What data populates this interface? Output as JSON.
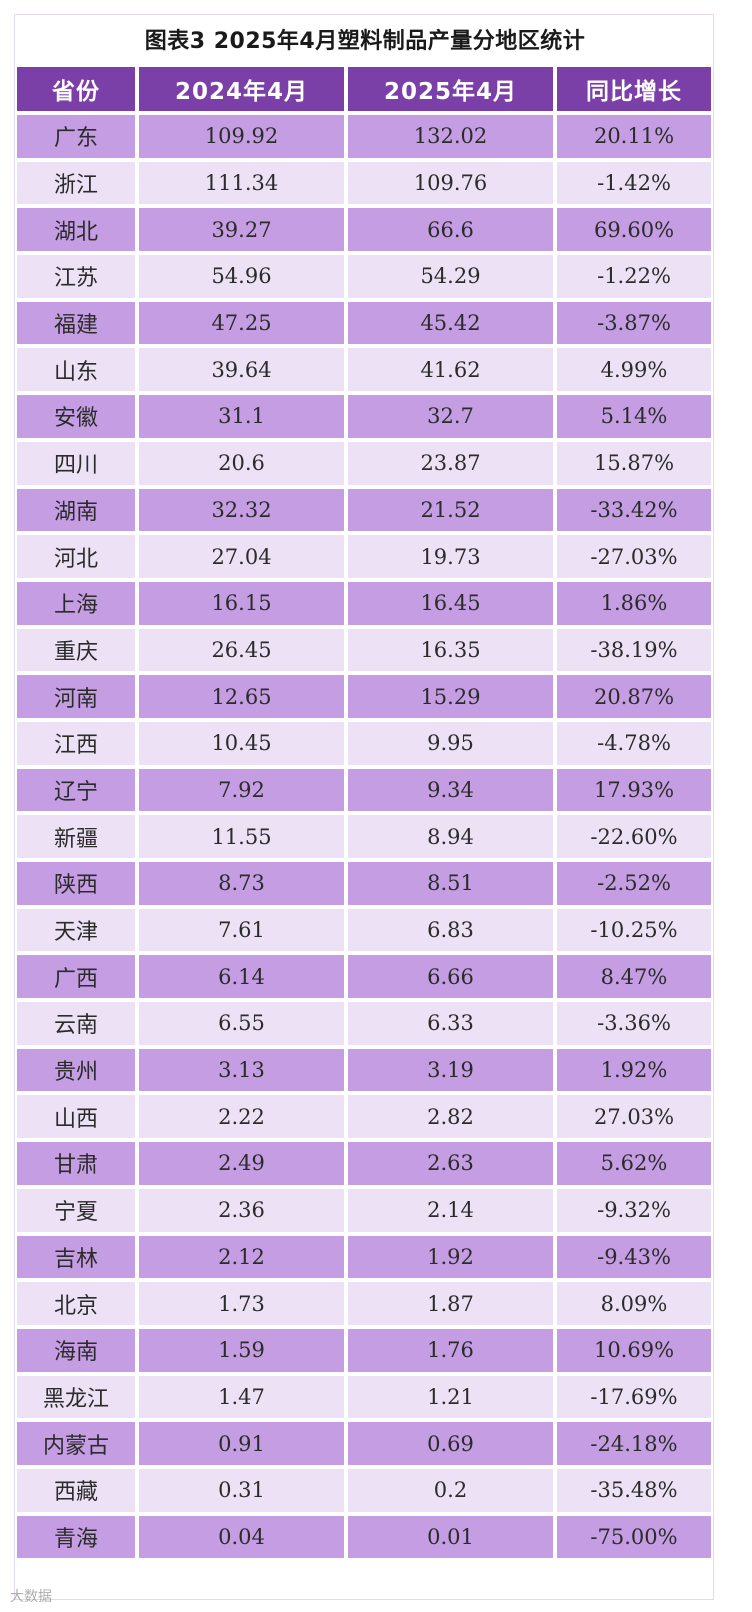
{
  "chart_data": {
    "type": "table",
    "title": "图表3 2025年4月塑料制品产量分地区统计",
    "columns": [
      "省份",
      "2024年4月",
      "2025年4月",
      "同比增长"
    ],
    "rows": [
      [
        "广东",
        "109.92",
        "132.02",
        "20.11%"
      ],
      [
        "浙江",
        "111.34",
        "109.76",
        "-1.42%"
      ],
      [
        "湖北",
        "39.27",
        "66.6",
        "69.60%"
      ],
      [
        "江苏",
        "54.96",
        "54.29",
        "-1.22%"
      ],
      [
        "福建",
        "47.25",
        "45.42",
        "-3.87%"
      ],
      [
        "山东",
        "39.64",
        "41.62",
        "4.99%"
      ],
      [
        "安徽",
        "31.1",
        "32.7",
        "5.14%"
      ],
      [
        "四川",
        "20.6",
        "23.87",
        "15.87%"
      ],
      [
        "湖南",
        "32.32",
        "21.52",
        "-33.42%"
      ],
      [
        "河北",
        "27.04",
        "19.73",
        "-27.03%"
      ],
      [
        "上海",
        "16.15",
        "16.45",
        "1.86%"
      ],
      [
        "重庆",
        "26.45",
        "16.35",
        "-38.19%"
      ],
      [
        "河南",
        "12.65",
        "15.29",
        "20.87%"
      ],
      [
        "江西",
        "10.45",
        "9.95",
        "-4.78%"
      ],
      [
        "辽宁",
        "7.92",
        "9.34",
        "17.93%"
      ],
      [
        "新疆",
        "11.55",
        "8.94",
        "-22.60%"
      ],
      [
        "陕西",
        "8.73",
        "8.51",
        "-2.52%"
      ],
      [
        "天津",
        "7.61",
        "6.83",
        "-10.25%"
      ],
      [
        "广西",
        "6.14",
        "6.66",
        "8.47%"
      ],
      [
        "云南",
        "6.55",
        "6.33",
        "-3.36%"
      ],
      [
        "贵州",
        "3.13",
        "3.19",
        "1.92%"
      ],
      [
        "山西",
        "2.22",
        "2.82",
        "27.03%"
      ],
      [
        "甘肃",
        "2.49",
        "2.63",
        "5.62%"
      ],
      [
        "宁夏",
        "2.36",
        "2.14",
        "-9.32%"
      ],
      [
        "吉林",
        "2.12",
        "1.92",
        "-9.43%"
      ],
      [
        "北京",
        "1.73",
        "1.87",
        "8.09%"
      ],
      [
        "海南",
        "1.59",
        "1.76",
        "10.69%"
      ],
      [
        "黑龙江",
        "1.47",
        "1.21",
        "-17.69%"
      ],
      [
        "内蒙古",
        "0.91",
        "0.69",
        "-24.18%"
      ],
      [
        "西藏",
        "0.31",
        "0.2",
        "-35.48%"
      ],
      [
        "青海",
        "0.04",
        "0.01",
        "-75.00%"
      ]
    ],
    "colors": {
      "header_bg": "#7b3fa8",
      "row_odd": "#c49de2",
      "row_even": "#ede2f5"
    }
  },
  "watermark": "大数据"
}
